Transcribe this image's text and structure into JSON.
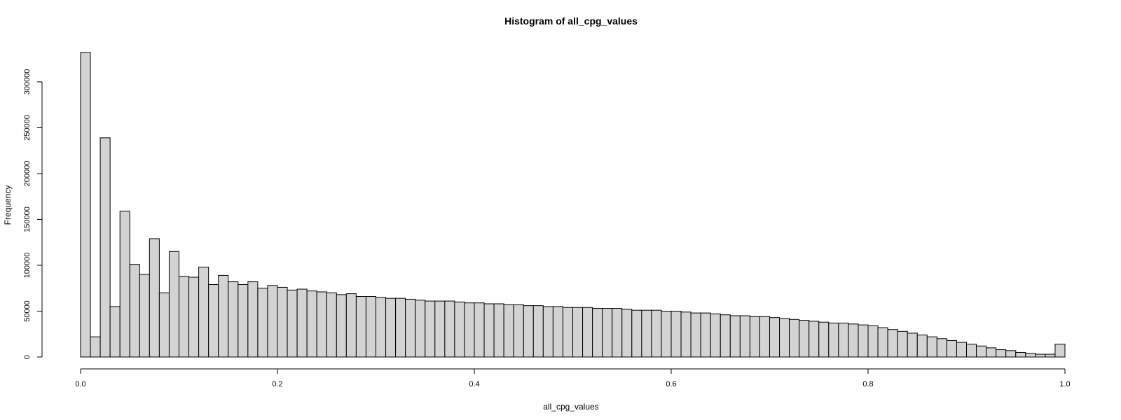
{
  "chart_data": {
    "type": "bar",
    "title": "Histogram of all_cpg_values",
    "xlabel": "all_cpg_values",
    "ylabel": "Frequency",
    "xlim": [
      0,
      1
    ],
    "ylim": [
      0,
      332000
    ],
    "bin_width": 0.01,
    "x_ticks": [
      0,
      0.2,
      0.4,
      0.6,
      0.8,
      1
    ],
    "x_tick_labels": [
      "0.0",
      "0.2",
      "0.4",
      "0.6",
      "0.8",
      "1.0"
    ],
    "y_ticks": [
      0,
      50000,
      100000,
      150000,
      200000,
      250000,
      300000
    ],
    "y_tick_labels": [
      "0",
      "50000",
      "100000",
      "150000",
      "200000",
      "250000",
      "300000"
    ],
    "grid": false,
    "legend": "none",
    "bar_fill": "#d3d3d3",
    "bar_stroke": "#000000",
    "values": [
      332000,
      22000,
      239000,
      55000,
      159000,
      101000,
      90000,
      129000,
      70000,
      115000,
      88000,
      87000,
      98000,
      79000,
      89000,
      82000,
      79000,
      82000,
      75000,
      78000,
      76000,
      73000,
      74000,
      72000,
      71000,
      70000,
      68000,
      69000,
      66000,
      66000,
      65000,
      64000,
      64000,
      63000,
      62000,
      61000,
      61000,
      61000,
      60000,
      59000,
      59000,
      58000,
      58000,
      57000,
      57000,
      56000,
      56000,
      55000,
      55000,
      54000,
      54000,
      54000,
      53000,
      53000,
      53000,
      52000,
      51000,
      51000,
      51000,
      50000,
      50000,
      49000,
      48000,
      48000,
      47000,
      46000,
      45000,
      45000,
      44000,
      44000,
      43000,
      42000,
      41000,
      40000,
      39000,
      38000,
      37000,
      37000,
      36000,
      35000,
      34000,
      32000,
      30000,
      28000,
      26000,
      24000,
      22000,
      20000,
      18000,
      16000,
      14000,
      12000,
      10000,
      8000,
      7000,
      5000,
      4000,
      3000,
      3000,
      14000
    ]
  }
}
